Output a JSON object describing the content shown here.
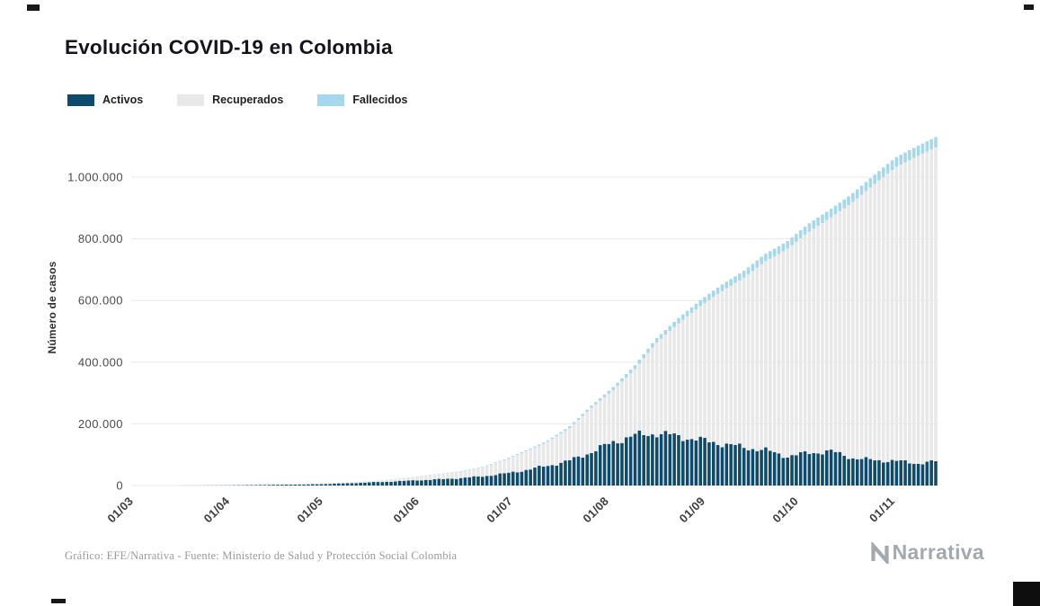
{
  "page": {
    "title": "Evolución COVID-19 en Colombia",
    "footer_credit": "Gráfico: EFE/Narrativa - Fuente: Ministerio de Salud y Protección Social Colombia",
    "brand": "Narrativa"
  },
  "legend": [
    {
      "label": "Activos",
      "color": "#0e4a6b"
    },
    {
      "label": "Recuperados",
      "color": "#e8e8e8"
    },
    {
      "label": "Fallecidos",
      "color": "#a5d8ec"
    }
  ],
  "chart_data": {
    "type": "bar",
    "stacked": true,
    "title": "Evolución COVID-19 en Colombia",
    "xlabel": "",
    "ylabel": "Número de casos",
    "ylim": [
      0,
      1130000
    ],
    "grid": "horizontal",
    "legend_position": "top-left",
    "y_ticks": [
      0,
      200000,
      400000,
      600000,
      800000,
      1000000
    ],
    "y_tick_labels": [
      "0",
      "200.000",
      "400.000",
      "600.000",
      "800.000",
      "1.000.000"
    ],
    "x_tick_days": [
      0,
      31,
      61,
      92,
      122,
      153,
      184,
      214,
      245
    ],
    "x_tick_labels": [
      "01/03",
      "01/04",
      "01/05",
      "01/06",
      "01/07",
      "01/08",
      "01/09",
      "01/10",
      "01/11"
    ],
    "x_days": [
      0,
      7,
      14,
      21,
      28,
      35,
      42,
      49,
      56,
      63,
      70,
      77,
      84,
      91,
      98,
      105,
      112,
      119,
      126,
      133,
      140,
      147,
      154,
      161,
      168,
      175,
      182,
      189,
      196,
      203,
      210,
      217,
      224,
      231,
      238,
      245,
      252,
      258
    ],
    "x_dates": [
      "01/03",
      "08/03",
      "15/03",
      "22/03",
      "29/03",
      "05/04",
      "12/04",
      "19/04",
      "26/04",
      "03/05",
      "10/05",
      "17/05",
      "24/05",
      "31/05",
      "07/06",
      "14/06",
      "21/06",
      "28/06",
      "05/07",
      "12/07",
      "19/07",
      "26/07",
      "02/08",
      "09/08",
      "16/08",
      "23/08",
      "30/08",
      "06/09",
      "13/09",
      "20/09",
      "27/09",
      "04/10",
      "11/10",
      "18/10",
      "25/10",
      "01/11",
      "08/11",
      "14/11"
    ],
    "series": [
      {
        "name": "Activos",
        "color": "#0e4a6b",
        "values": [
          0,
          5,
          90,
          250,
          650,
          1200,
          2200,
          2900,
          3600,
          5500,
          7800,
          10500,
          13500,
          17000,
          20000,
          24000,
          30000,
          38000,
          50000,
          64000,
          80000,
          108000,
          140000,
          162000,
          170000,
          160000,
          148000,
          136000,
          124000,
          115000,
          95000,
          105000,
          112000,
          90000,
          82000,
          80000,
          72000,
          78000
        ]
      },
      {
        "name": "Recuperados",
        "color": "#e8e8e8",
        "values": [
          0,
          0,
          9,
          47,
          140,
          265,
          520,
          780,
          1320,
          1950,
          2850,
          4050,
          6900,
          11200,
          16900,
          20600,
          28200,
          43700,
          60000,
          77000,
          104700,
          142000,
          167500,
          213000,
          291500,
          364000,
          432000,
          493000,
          547500,
          611000,
          670000,
          716500,
          755500,
          826500,
          893000,
          951500,
          995500,
          1018500
        ]
      },
      {
        "name": "Fallecidos",
        "color": "#a5d8ec",
        "values": [
          0,
          0,
          1,
          3,
          10,
          35,
          80,
          120,
          180,
          250,
          350,
          450,
          600,
          800,
          1100,
          1400,
          1800,
          2300,
          3000,
          4000,
          5300,
          7000,
          9500,
          12000,
          14500,
          17000,
          19000,
          21000,
          22500,
          24000,
          25000,
          26500,
          27500,
          28500,
          30000,
          31500,
          32500,
          33500
        ]
      }
    ]
  }
}
